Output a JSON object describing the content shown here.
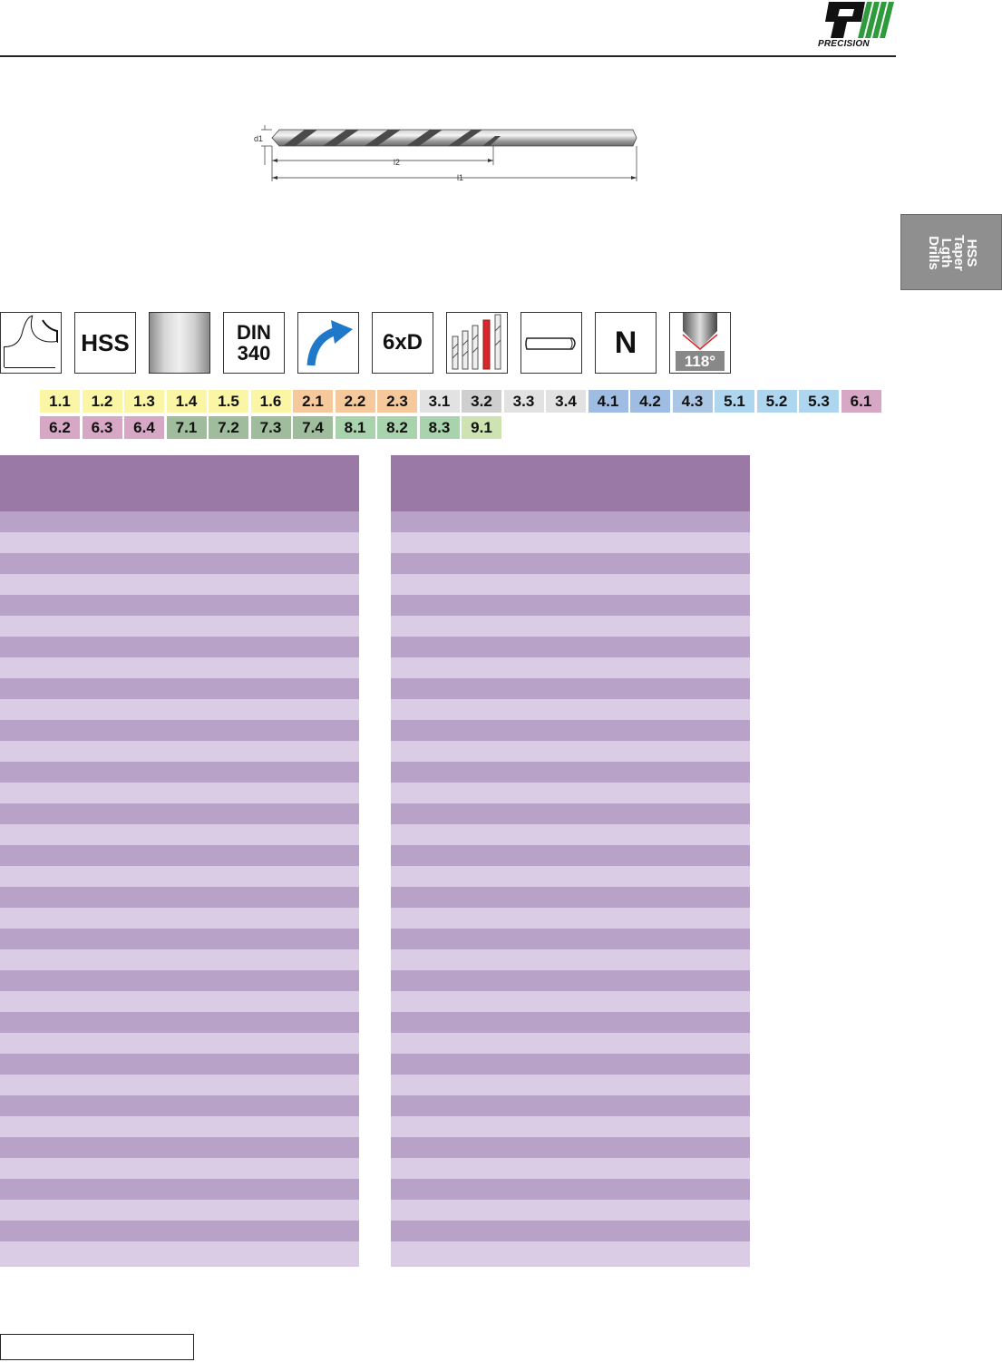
{
  "logo": {
    "text": "PRECISION",
    "icon": "precision-logo-icon"
  },
  "drill_diagram": {
    "labels": {
      "d1": "d1",
      "l2": "l2",
      "l1": "l1"
    }
  },
  "side_tab": {
    "lines": [
      "HSS",
      "Taper",
      "Lgth",
      "Drills"
    ],
    "color": "#8f8f8f"
  },
  "icons": [
    {
      "name": "right-hand-spiral-icon",
      "text": ""
    },
    {
      "name": "hss-material-icon",
      "text": "HSS"
    },
    {
      "name": "bright-finish-icon",
      "text": ""
    },
    {
      "name": "din-standard-icon",
      "lines": [
        "DIN",
        "340"
      ]
    },
    {
      "name": "right-hand-cutting-icon",
      "text": ""
    },
    {
      "name": "drilling-depth-icon",
      "text": "6xD"
    },
    {
      "name": "drill-lengths-icon",
      "text": ""
    },
    {
      "name": "cylindrical-shank-icon",
      "text": ""
    },
    {
      "name": "type-n-icon",
      "text": "N"
    },
    {
      "name": "point-angle-icon",
      "text": "118°"
    }
  ],
  "material_groups": [
    {
      "code": "1.1",
      "color": "#fbf5a6"
    },
    {
      "code": "1.2",
      "color": "#fbf5a6"
    },
    {
      "code": "1.3",
      "color": "#fbf5a6"
    },
    {
      "code": "1.4",
      "color": "#fbf5a6"
    },
    {
      "code": "1.5",
      "color": "#fbf5a6"
    },
    {
      "code": "1.6",
      "color": "#fbf5a6"
    },
    {
      "code": "2.1",
      "color": "#f6c99c"
    },
    {
      "code": "2.2",
      "color": "#f6c99c"
    },
    {
      "code": "2.3",
      "color": "#f6c99c"
    },
    {
      "code": "3.1",
      "color": "#e2e2e2"
    },
    {
      "code": "3.2",
      "color": "#cfcfcf"
    },
    {
      "code": "3.3",
      "color": "#e2e2e2"
    },
    {
      "code": "3.4",
      "color": "#e2e2e2"
    },
    {
      "code": "4.1",
      "color": "#9fbde2"
    },
    {
      "code": "4.2",
      "color": "#9fbde2"
    },
    {
      "code": "4.3",
      "color": "#aac6e4"
    },
    {
      "code": "5.1",
      "color": "#aed6ef"
    },
    {
      "code": "5.2",
      "color": "#aed6ef"
    },
    {
      "code": "5.3",
      "color": "#aed6ef"
    },
    {
      "code": "6.1",
      "color": "#d7a7c6"
    },
    {
      "code": "6.2",
      "color": "#d7a7c6"
    },
    {
      "code": "6.3",
      "color": "#d7a7c6"
    },
    {
      "code": "6.4",
      "color": "#d7a7c6"
    },
    {
      "code": "7.1",
      "color": "#9fbc9c"
    },
    {
      "code": "7.2",
      "color": "#9fbc9c"
    },
    {
      "code": "7.3",
      "color": "#9fbc9c"
    },
    {
      "code": "7.4",
      "color": "#9fbc9c"
    },
    {
      "code": "8.1",
      "color": "#a9d3ad"
    },
    {
      "code": "8.2",
      "color": "#a9d3ad"
    },
    {
      "code": "8.3",
      "color": "#a9d3ad"
    },
    {
      "code": "9.1",
      "color": "#cde3b1"
    }
  ],
  "tables": {
    "header_color": "#9b79a6",
    "row_dark": "#b8a2c7",
    "row_light": "#dacce4"
  }
}
